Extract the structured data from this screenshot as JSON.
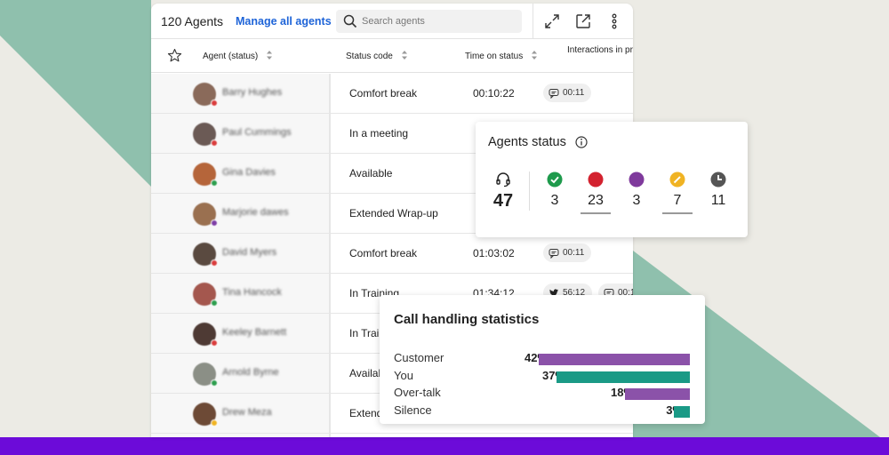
{
  "toolbar": {
    "agent_count": "120 Agents",
    "manage_link": "Manage all agents",
    "search_placeholder": "Search agents",
    "tools": [
      "expand-icon",
      "external-link-icon",
      "more-vertical-icon"
    ]
  },
  "table": {
    "columns": [
      "Agent (status)",
      "Status code",
      "Time on status",
      "Interactions in progress"
    ],
    "rows": [
      {
        "name": "Barry Hughes",
        "status_code": "Comfort break",
        "time": "00:10:22",
        "chips": [
          {
            "icon": "chat-icon",
            "value": "00:11"
          }
        ],
        "presence": "#d93d3d",
        "avatar_color": "#8a6a5a"
      },
      {
        "name": "Paul Cummings",
        "status_code": "In a meeting",
        "time": "",
        "chips": [],
        "presence": "#d93d3d",
        "avatar_color": "#6b5a55"
      },
      {
        "name": "Gina Davies",
        "status_code": "Available",
        "time": "",
        "chips": [],
        "presence": "#2e9e4f",
        "avatar_color": "#b5653a"
      },
      {
        "name": "Marjorie dawes",
        "status_code": "Extended Wrap-up",
        "time": "",
        "chips": [],
        "presence": "#7e3fa6",
        "avatar_color": "#9a7050"
      },
      {
        "name": "David Myers",
        "status_code": "Comfort break",
        "time": "01:03:02",
        "chips": [
          {
            "icon": "chat-icon",
            "value": "00:11"
          }
        ],
        "presence": "#d93d3d",
        "avatar_color": "#5a4a40"
      },
      {
        "name": "Tina Hancock",
        "status_code": "In Training",
        "time": "01:34:12",
        "chips": [
          {
            "icon": "twitter-icon",
            "value": "56:12"
          },
          {
            "icon": "chat-icon",
            "value": "00:1"
          }
        ],
        "presence": "#2e9e4f",
        "avatar_color": "#a4574e"
      },
      {
        "name": "Keeley Barnett",
        "status_code": "In Trai",
        "time": "",
        "chips": [],
        "presence": "#d93d3d",
        "avatar_color": "#4e3a34"
      },
      {
        "name": "Arnold Byrne",
        "status_code": "Availal",
        "time": "",
        "chips": [],
        "presence": "#2e9e4f",
        "avatar_color": "#8b8f86"
      },
      {
        "name": "Drew Meza",
        "status_code": "Extend",
        "time": "",
        "chips": [],
        "presence": "#f0b323",
        "avatar_color": "#6d4a36"
      }
    ]
  },
  "agents_status": {
    "title": "Agents status",
    "total": "47",
    "stats": [
      {
        "icon": "check-circle-icon",
        "color": "#1e9a4c",
        "value": "3"
      },
      {
        "icon": "busy-dot-icon",
        "color": "#d3222f",
        "value": "23"
      },
      {
        "icon": "purple-dot-icon",
        "color": "#7f3a9c",
        "value": "3"
      },
      {
        "icon": "pencil-circle-icon",
        "color": "#f0b323",
        "value": "7"
      },
      {
        "icon": "clock-icon",
        "color": "#555555",
        "value": "11"
      }
    ]
  },
  "call_stats": {
    "title": "Call handling statistics",
    "rows": [
      {
        "label": "Customer",
        "pct": "42%",
        "value": 42,
        "color": "#8b52a9"
      },
      {
        "label": "You",
        "pct": "37%",
        "value": 37,
        "color": "#1a9a86"
      },
      {
        "label": "Over-talk",
        "pct": "18%",
        "value": 18,
        "color": "#8b52a9"
      },
      {
        "label": "Silence",
        "pct": "3%",
        "value": 3,
        "color": "#1a9a86"
      }
    ]
  },
  "colors": {
    "accent_teal": "#8fc0ad",
    "band_purple": "#6c0bd9",
    "link_blue": "#1e64d8"
  }
}
